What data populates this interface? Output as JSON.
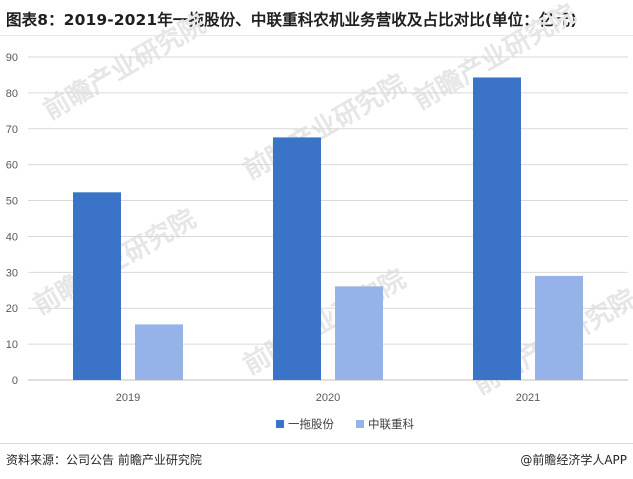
{
  "header": {
    "title": "图表8：2019-2021年一拖股份、中联重科农机业务营收及占比对比(单位：亿元)"
  },
  "footer": {
    "source": "资料来源：公司公告 前瞻产业研究院",
    "credit": "@前瞻经济学人APP"
  },
  "watermark": {
    "text": "前瞻产业研究院"
  },
  "colors": {
    "series_1": "#3a73c8",
    "series_2": "#95b3e8",
    "grid": "#d9d9d9",
    "axis": "#bfbfbf"
  },
  "chart_data": {
    "type": "bar",
    "title": "图表8：2019-2021年一拖股份、中联重科农机业务营收及占比对比(单位：亿元)",
    "categories": [
      "2019",
      "2020",
      "2021"
    ],
    "series": [
      {
        "name": "一拖股份",
        "values": [
          52.3,
          67.6,
          84.3
        ]
      },
      {
        "name": "中联重科",
        "values": [
          15.5,
          26.1,
          29.0
        ]
      }
    ],
    "xlabel": "",
    "ylabel": "",
    "ylim": [
      0,
      90
    ],
    "yticks": [
      0,
      10,
      20,
      30,
      40,
      50,
      60,
      70,
      80,
      90
    ],
    "grid": true,
    "legend_position": "bottom"
  }
}
